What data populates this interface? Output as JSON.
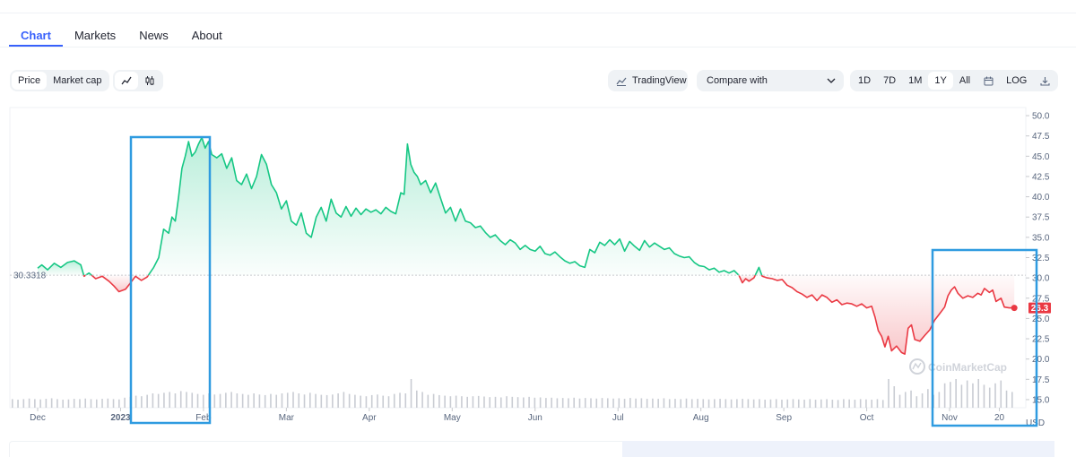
{
  "tabs": [
    {
      "label": "Chart",
      "active": true
    },
    {
      "label": "Markets"
    },
    {
      "label": "News"
    },
    {
      "label": "About"
    }
  ],
  "toolbar": {
    "price_label": "Price",
    "market_cap_label": "Market cap",
    "line_icon": "line-chart-icon",
    "candle_icon": "candlestick-icon",
    "tradingview_label": "TradingView",
    "compare_label": "Compare with",
    "ranges": [
      "1D",
      "7D",
      "1M",
      "1Y",
      "All"
    ],
    "selected_range": "1Y",
    "calendar_icon": "calendar-icon",
    "log_label": "LOG",
    "download_icon": "download-icon"
  },
  "chart_data": {
    "type": "line",
    "baseline_label": "30.3318",
    "baseline_value": 30.3318,
    "current_value_label": "26.3",
    "current_value": 26.3,
    "y_ticks": [
      15.0,
      17.5,
      20.0,
      22.5,
      25.0,
      27.5,
      30.0,
      32.5,
      35.0,
      37.5,
      40.0,
      42.5,
      45.0,
      47.5,
      50.0
    ],
    "y_tick_labels": [
      "15.0",
      "17.5",
      "20.0",
      "22.5",
      "25.0",
      "27.5",
      "30.0",
      "32.5",
      "35.0",
      "37.5",
      "40.0",
      "42.5",
      "45.0",
      "47.5",
      "50.0"
    ],
    "ylim": [
      14.0,
      51.0
    ],
    "y_unit": "USD",
    "xlim": [
      0,
      12.2
    ],
    "x_ticks": [
      {
        "label": "Dec",
        "x": 0.0
      },
      {
        "label": "2023",
        "x": 1.0
      },
      {
        "label": "Feb",
        "x": 2.0
      },
      {
        "label": "Mar",
        "x": 3.0
      },
      {
        "label": "Apr",
        "x": 4.0
      },
      {
        "label": "May",
        "x": 5.0
      },
      {
        "label": "Jun",
        "x": 6.0
      },
      {
        "label": "Jul",
        "x": 7.0
      },
      {
        "label": "Aug",
        "x": 8.0
      },
      {
        "label": "Sep",
        "x": 9.0
      },
      {
        "label": "Oct",
        "x": 10.0
      },
      {
        "label": "Nov",
        "x": 11.0
      },
      {
        "label": "20",
        "x": 11.6
      }
    ],
    "up_color": "#16c784",
    "down_color": "#ea3943",
    "watermark": "CoinMarketCap",
    "price_series": [
      [
        0.0,
        31.2
      ],
      [
        0.05,
        31.6
      ],
      [
        0.12,
        31.0
      ],
      [
        0.2,
        31.8
      ],
      [
        0.28,
        31.3
      ],
      [
        0.36,
        31.9
      ],
      [
        0.44,
        32.1
      ],
      [
        0.52,
        31.6
      ],
      [
        0.56,
        30.2
      ],
      [
        0.62,
        30.6
      ],
      [
        0.7,
        29.9
      ],
      [
        0.78,
        30.2
      ],
      [
        0.86,
        29.6
      ],
      [
        0.92,
        29.0
      ],
      [
        0.98,
        28.3
      ],
      [
        1.06,
        28.6
      ],
      [
        1.12,
        29.4
      ],
      [
        1.18,
        30.2
      ],
      [
        1.25,
        29.7
      ],
      [
        1.32,
        30.1
      ],
      [
        1.4,
        31.3
      ],
      [
        1.46,
        32.5
      ],
      [
        1.52,
        36.0
      ],
      [
        1.58,
        35.5
      ],
      [
        1.62,
        37.5
      ],
      [
        1.66,
        37.0
      ],
      [
        1.7,
        40.0
      ],
      [
        1.74,
        43.5
      ],
      [
        1.78,
        45.0
      ],
      [
        1.82,
        46.8
      ],
      [
        1.86,
        45.0
      ],
      [
        1.9,
        45.5
      ],
      [
        1.94,
        46.5
      ],
      [
        1.98,
        47.3
      ],
      [
        2.02,
        46.0
      ],
      [
        2.06,
        46.8
      ],
      [
        2.1,
        45.2
      ],
      [
        2.16,
        44.8
      ],
      [
        2.22,
        45.3
      ],
      [
        2.28,
        43.5
      ],
      [
        2.34,
        44.8
      ],
      [
        2.4,
        42.0
      ],
      [
        2.46,
        41.5
      ],
      [
        2.52,
        42.8
      ],
      [
        2.58,
        41.0
      ],
      [
        2.64,
        42.5
      ],
      [
        2.7,
        45.2
      ],
      [
        2.76,
        44.0
      ],
      [
        2.82,
        41.5
      ],
      [
        2.88,
        40.5
      ],
      [
        2.94,
        38.5
      ],
      [
        3.0,
        39.5
      ],
      [
        3.06,
        37.0
      ],
      [
        3.12,
        36.5
      ],
      [
        3.18,
        38.0
      ],
      [
        3.24,
        35.5
      ],
      [
        3.3,
        35.0
      ],
      [
        3.36,
        37.5
      ],
      [
        3.42,
        38.7
      ],
      [
        3.48,
        37.0
      ],
      [
        3.54,
        39.7
      ],
      [
        3.6,
        38.0
      ],
      [
        3.66,
        37.5
      ],
      [
        3.72,
        38.8
      ],
      [
        3.78,
        37.6
      ],
      [
        3.84,
        38.6
      ],
      [
        3.9,
        37.8
      ],
      [
        3.96,
        38.5
      ],
      [
        4.02,
        38.1
      ],
      [
        4.08,
        38.4
      ],
      [
        4.14,
        37.9
      ],
      [
        4.2,
        38.7
      ],
      [
        4.26,
        38.2
      ],
      [
        4.32,
        37.9
      ],
      [
        4.38,
        40.5
      ],
      [
        4.42,
        40.3
      ],
      [
        4.46,
        46.5
      ],
      [
        4.5,
        44.0
      ],
      [
        4.54,
        43.0
      ],
      [
        4.58,
        42.5
      ],
      [
        4.62,
        41.5
      ],
      [
        4.68,
        42.0
      ],
      [
        4.74,
        40.5
      ],
      [
        4.8,
        41.7
      ],
      [
        4.86,
        39.8
      ],
      [
        4.92,
        38.0
      ],
      [
        4.98,
        38.7
      ],
      [
        5.04,
        37.0
      ],
      [
        5.1,
        38.5
      ],
      [
        5.16,
        37.0
      ],
      [
        5.22,
        36.8
      ],
      [
        5.28,
        36.2
      ],
      [
        5.34,
        36.4
      ],
      [
        5.4,
        35.6
      ],
      [
        5.46,
        35.0
      ],
      [
        5.52,
        35.3
      ],
      [
        5.58,
        34.6
      ],
      [
        5.64,
        34.1
      ],
      [
        5.7,
        34.7
      ],
      [
        5.76,
        34.3
      ],
      [
        5.82,
        33.5
      ],
      [
        5.88,
        34.0
      ],
      [
        5.94,
        33.5
      ],
      [
        6.0,
        33.3
      ],
      [
        6.06,
        33.9
      ],
      [
        6.12,
        33.0
      ],
      [
        6.18,
        32.8
      ],
      [
        6.24,
        33.2
      ],
      [
        6.3,
        32.6
      ],
      [
        6.36,
        32.1
      ],
      [
        6.42,
        31.8
      ],
      [
        6.48,
        32.0
      ],
      [
        6.54,
        31.5
      ],
      [
        6.6,
        31.3
      ],
      [
        6.66,
        33.5
      ],
      [
        6.72,
        33.1
      ],
      [
        6.78,
        34.4
      ],
      [
        6.84,
        34.0
      ],
      [
        6.9,
        34.7
      ],
      [
        6.96,
        34.1
      ],
      [
        7.02,
        34.8
      ],
      [
        7.08,
        33.3
      ],
      [
        7.14,
        34.5
      ],
      [
        7.2,
        33.9
      ],
      [
        7.26,
        33.4
      ],
      [
        7.32,
        34.6
      ],
      [
        7.38,
        33.8
      ],
      [
        7.44,
        34.3
      ],
      [
        7.5,
        33.9
      ],
      [
        7.56,
        33.5
      ],
      [
        7.62,
        33.7
      ],
      [
        7.68,
        33.0
      ],
      [
        7.74,
        32.7
      ],
      [
        7.8,
        32.5
      ],
      [
        7.86,
        32.6
      ],
      [
        7.92,
        31.9
      ],
      [
        7.98,
        31.5
      ],
      [
        8.04,
        31.4
      ],
      [
        8.1,
        31.0
      ],
      [
        8.16,
        31.2
      ],
      [
        8.22,
        30.7
      ],
      [
        8.28,
        30.9
      ],
      [
        8.34,
        30.6
      ],
      [
        8.4,
        30.9
      ],
      [
        8.46,
        30.3
      ],
      [
        8.5,
        29.4
      ],
      [
        8.54,
        29.9
      ],
      [
        8.58,
        29.6
      ],
      [
        8.64,
        30.0
      ],
      [
        8.7,
        31.3
      ],
      [
        8.74,
        30.2
      ],
      [
        8.8,
        30.0
      ],
      [
        8.86,
        29.9
      ],
      [
        8.92,
        29.7
      ],
      [
        8.98,
        29.8
      ],
      [
        9.04,
        29.1
      ],
      [
        9.1,
        28.8
      ],
      [
        9.16,
        28.3
      ],
      [
        9.22,
        28.0
      ],
      [
        9.28,
        27.6
      ],
      [
        9.34,
        27.9
      ],
      [
        9.4,
        27.2
      ],
      [
        9.46,
        27.9
      ],
      [
        9.52,
        27.6
      ],
      [
        9.58,
        27.0
      ],
      [
        9.64,
        27.3
      ],
      [
        9.7,
        26.7
      ],
      [
        9.76,
        26.9
      ],
      [
        9.82,
        26.8
      ],
      [
        9.88,
        26.5
      ],
      [
        9.94,
        26.8
      ],
      [
        10.0,
        26.3
      ],
      [
        10.06,
        26.5
      ],
      [
        10.1,
        25.2
      ],
      [
        10.14,
        23.5
      ],
      [
        10.18,
        22.8
      ],
      [
        10.22,
        21.5
      ],
      [
        10.26,
        22.8
      ],
      [
        10.3,
        21.0
      ],
      [
        10.36,
        21.6
      ],
      [
        10.42,
        20.8
      ],
      [
        10.46,
        20.6
      ],
      [
        10.5,
        23.8
      ],
      [
        10.54,
        24.2
      ],
      [
        10.58,
        22.4
      ],
      [
        10.64,
        22.2
      ],
      [
        10.7,
        22.9
      ],
      [
        10.76,
        23.6
      ],
      [
        10.82,
        24.8
      ],
      [
        10.88,
        25.6
      ],
      [
        10.94,
        26.4
      ],
      [
        10.98,
        27.8
      ],
      [
        11.02,
        28.5
      ],
      [
        11.06,
        28.9
      ],
      [
        11.1,
        28.1
      ],
      [
        11.16,
        27.5
      ],
      [
        11.22,
        27.8
      ],
      [
        11.28,
        27.6
      ],
      [
        11.34,
        28.1
      ],
      [
        11.38,
        27.9
      ],
      [
        11.42,
        28.7
      ],
      [
        11.48,
        28.2
      ],
      [
        11.52,
        28.5
      ],
      [
        11.56,
        27.1
      ],
      [
        11.62,
        27.5
      ],
      [
        11.66,
        26.4
      ],
      [
        11.72,
        26.3
      ],
      [
        11.78,
        26.3
      ]
    ],
    "volume_relative": [
      0.3,
      0.28,
      0.3,
      0.32,
      0.3,
      0.29,
      0.31,
      0.33,
      0.3,
      0.28,
      0.29,
      0.31,
      0.3,
      0.32,
      0.3,
      0.29,
      0.31,
      0.32,
      0.3,
      0.29,
      0.35,
      0.38,
      0.42,
      0.4,
      0.45,
      0.5,
      0.48,
      0.52,
      0.55,
      0.5,
      0.58,
      0.55,
      0.52,
      0.48,
      0.45,
      0.5,
      0.46,
      0.48,
      0.52,
      0.55,
      0.5,
      0.48,
      0.45,
      0.5,
      0.46,
      0.44,
      0.48,
      0.45,
      0.5,
      0.52,
      0.55,
      0.5,
      0.46,
      0.52,
      0.48,
      0.45,
      0.44,
      0.46,
      0.5,
      0.55,
      0.48,
      0.45,
      0.42,
      0.4,
      0.44,
      0.46,
      0.42,
      0.4,
      0.48,
      0.52,
      0.5,
      1.0,
      0.6,
      0.55,
      0.45,
      0.48,
      0.44,
      0.42,
      0.4,
      0.42,
      0.4,
      0.38,
      0.4,
      0.41,
      0.39,
      0.37,
      0.38,
      0.36,
      0.4,
      0.38,
      0.37,
      0.36,
      0.38,
      0.35,
      0.36,
      0.34,
      0.35,
      0.33,
      0.34,
      0.33,
      0.35,
      0.32,
      0.34,
      0.33,
      0.32,
      0.34,
      0.33,
      0.32,
      0.33,
      0.31,
      0.34,
      0.32,
      0.33,
      0.31,
      0.32,
      0.31,
      0.33,
      0.3,
      0.31,
      0.3,
      0.32,
      0.3,
      0.31,
      0.3,
      0.29,
      0.3,
      0.31,
      0.3,
      0.29,
      0.3,
      0.31,
      0.3,
      0.29,
      0.3,
      0.28,
      0.29,
      0.3,
      0.28,
      0.29,
      0.3,
      0.29,
      0.28,
      0.3,
      0.28,
      0.29,
      0.3,
      0.28,
      0.27,
      0.3,
      0.29,
      0.28,
      0.3,
      0.29,
      0.28,
      0.3,
      0.27,
      1.0,
      0.75,
      0.45,
      0.55,
      0.6,
      0.4,
      0.5,
      0.65,
      0.45,
      0.55,
      0.85,
      0.9,
      1.0,
      0.8,
      0.95,
      0.85,
      1.0,
      0.8,
      0.7,
      0.85,
      0.95,
      0.6,
      0.55
    ]
  }
}
